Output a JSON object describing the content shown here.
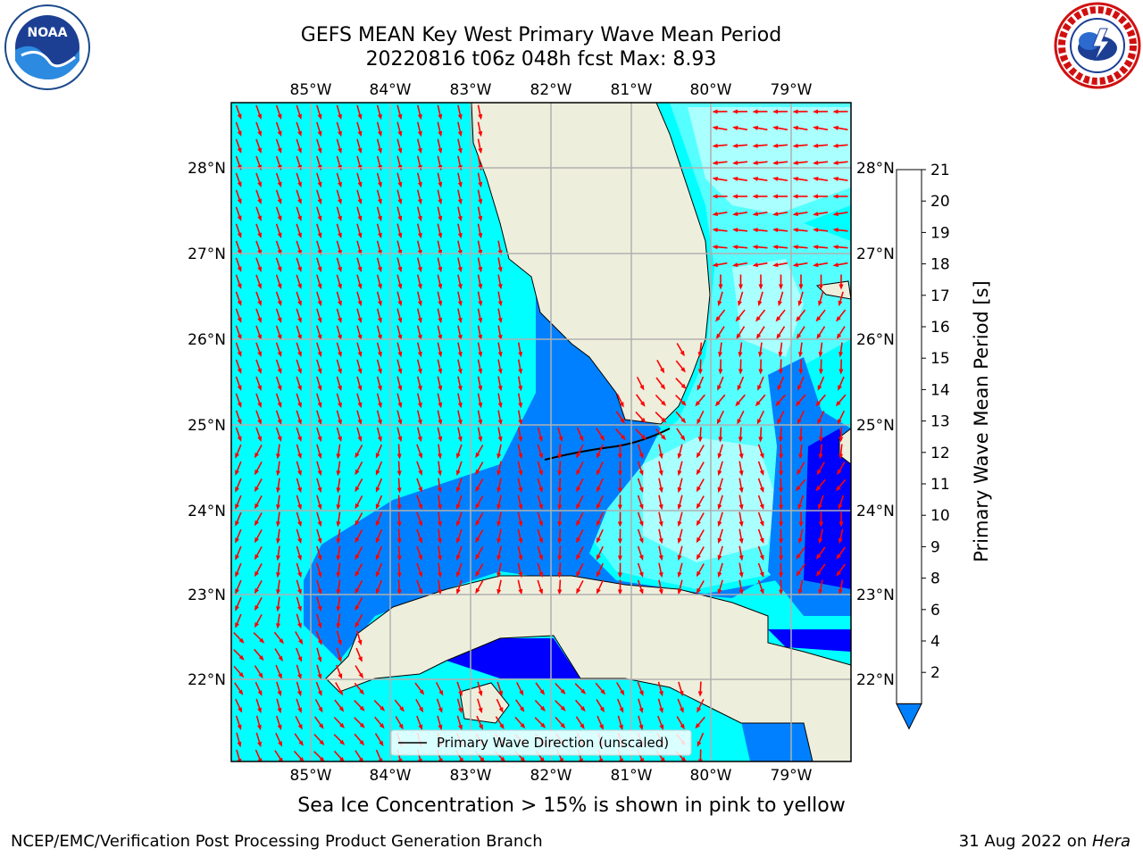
{
  "title": {
    "line1": "GEFS MEAN Key West Primary Wave Mean Period",
    "line2": "20220816 t06z 048h fcst   Max: 8.93"
  },
  "logos": {
    "left": {
      "name": "noaa-logo",
      "text": "NOAA"
    },
    "right": {
      "name": "nws-logo",
      "text": "NATIONAL WEATHER SERVICE"
    }
  },
  "map": {
    "lon_labels": [
      "85°W",
      "84°W",
      "83°W",
      "82°W",
      "81°W",
      "80°W",
      "79°W"
    ],
    "lat_labels": [
      "28°N",
      "27°N",
      "26°N",
      "25°N",
      "24°N",
      "23°N",
      "22°N"
    ],
    "legend_label": "Primary Wave Direction (unscaled)",
    "colors": {
      "land": "#eeeedc",
      "ocean_light": "#00ffff",
      "ocean_mid": "#55ffff",
      "ocean_pale": "#aaffff",
      "ocean_blue": "#0080ff",
      "ocean_dark": "#0000ff",
      "arrow": "#ff0000",
      "grid": "#b0b0b0"
    }
  },
  "colorbar": {
    "label": "Primary Wave Mean Period [s]",
    "ticks": [
      "21",
      "20",
      "19",
      "18",
      "17",
      "16",
      "15",
      "14",
      "13",
      "12",
      "11",
      "10",
      "9",
      "8",
      "6",
      "4",
      "2"
    ],
    "colors": [
      "#ff0000",
      "#ff2800",
      "#ff5000",
      "#ff7800",
      "#ff9600",
      "#ffb400",
      "#ffdc00",
      "#ffff00",
      "#dcff00",
      "#b4ff00",
      "#64e600",
      "#00dc00",
      "#00ff64",
      "#55ff9b",
      "#aaffff",
      "#55ffff",
      "#00ffff",
      "#0080ff"
    ]
  },
  "caption": "Sea Ice Concentration > 15% is shown in pink to yellow",
  "footer": {
    "left": "NCEP/EMC/Verification Post Processing Product Generation Branch",
    "right_date": "31 Aug 2022 on ",
    "right_host": "Hera"
  }
}
